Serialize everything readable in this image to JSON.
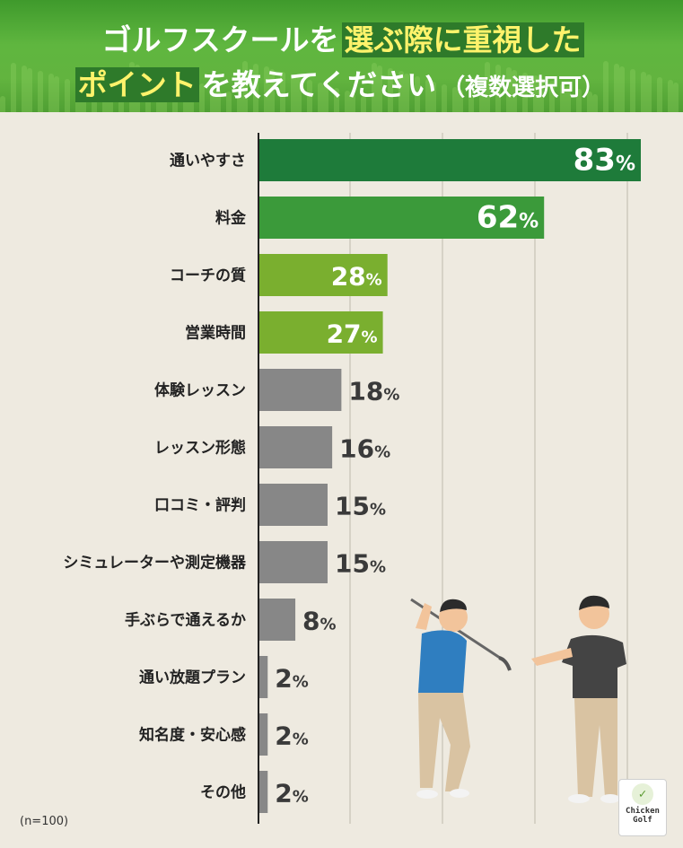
{
  "title": {
    "line1_plain": "ゴルフスクールを",
    "line1_highlight": "選ぶ際に重視した",
    "line2_highlight": "ポイント",
    "line2_plain": "を教えてください",
    "line2_suffix": "（複数選択可）"
  },
  "colors": {
    "bar_top1": "#1e7b3a",
    "bar_top2": "#3b9a3a",
    "bar_mid": "#7aaf2f",
    "bar_rest": "#878787",
    "highlight_bg": "#2e7a2a",
    "highlight_text": "#fff36b"
  },
  "chart_data": {
    "type": "bar",
    "orientation": "horizontal",
    "categories": [
      "通いやすさ",
      "料金",
      "コーチの質",
      "営業時間",
      "体験レッスン",
      "レッスン形態",
      "口コミ・評判",
      "シミュレーターや測定機器",
      "手ぶらで通えるか",
      "通い放題プラン",
      "知名度・安心感",
      "その他"
    ],
    "values": [
      83,
      62,
      28,
      27,
      18,
      16,
      15,
      15,
      8,
      2,
      2,
      2
    ],
    "value_suffix": "%",
    "xlim": [
      0,
      83
    ],
    "grid": true,
    "value_labels": [
      "83",
      "62",
      "28",
      "27",
      "18",
      "16",
      "15",
      "15",
      "8",
      "2",
      "2",
      "2"
    ]
  },
  "note": "(n=100)",
  "logo": {
    "line1": "Chicken",
    "line2": "Golf"
  }
}
